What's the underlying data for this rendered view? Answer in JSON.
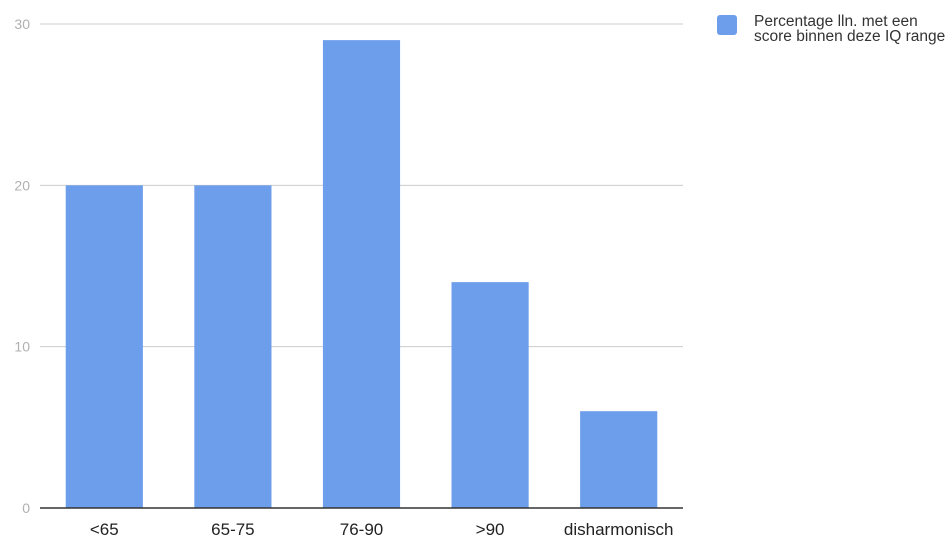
{
  "chart_data": {
    "type": "bar",
    "categories": [
      "<65",
      "65-75",
      "76-90",
      ">90",
      "disharmonisch"
    ],
    "series": [
      {
        "name": "Percentage lln. met een score binnen deze IQ range",
        "values": [
          20,
          20,
          29,
          14,
          6
        ]
      }
    ],
    "y_ticks": [
      "0",
      "10",
      "20",
      "30"
    ],
    "ylim": [
      0,
      30
    ],
    "grid": true,
    "legend_position": "top-right",
    "colors": {
      "bar": "#6d9eeb",
      "grid": "#cccccc",
      "axis": "#333333"
    }
  }
}
